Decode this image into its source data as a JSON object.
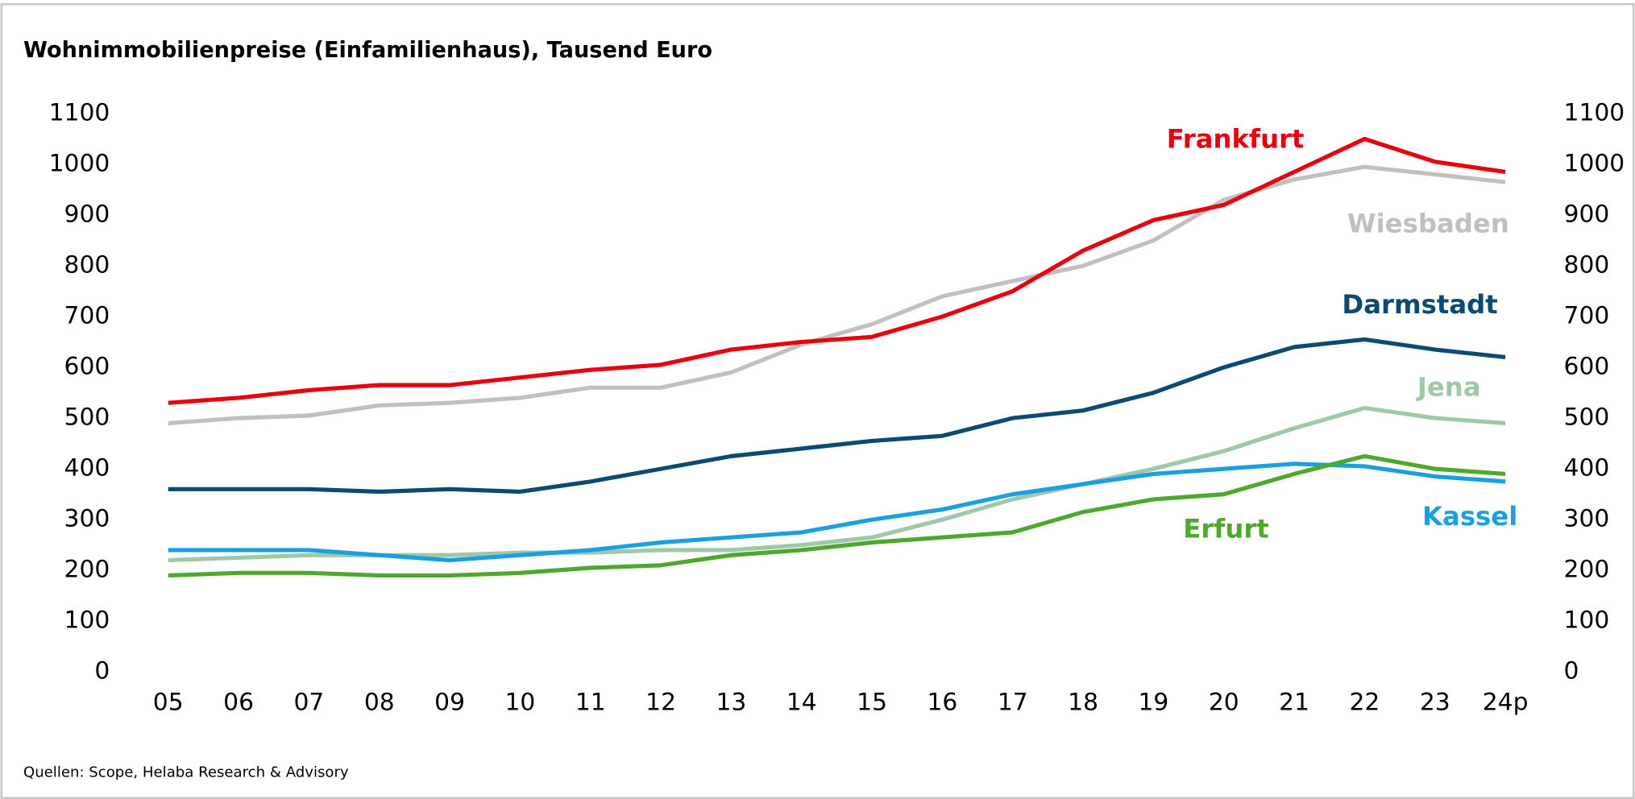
{
  "chart_data": {
    "type": "line",
    "title": "Wohnimmobilienpreise (Einfamilienhaus), Tausend Euro",
    "source": "Quellen: Scope, Helaba Research & Advisory",
    "categories": [
      "05",
      "06",
      "07",
      "08",
      "09",
      "10",
      "11",
      "12",
      "13",
      "14",
      "15",
      "16",
      "17",
      "18",
      "19",
      "20",
      "21",
      "22",
      "23",
      "24p"
    ],
    "ylim": [
      0,
      1100
    ],
    "yticks": [
      0,
      100,
      200,
      300,
      400,
      500,
      600,
      700,
      800,
      900,
      1000,
      1100
    ],
    "y2lim": [
      0,
      1100
    ],
    "y2ticks": [
      0,
      100,
      200,
      300,
      400,
      500,
      600,
      700,
      800,
      900,
      1000,
      1100
    ],
    "grid": false,
    "series": [
      {
        "name": "Wiesbaden",
        "color": "#c0c0c0",
        "values": [
          490,
          500,
          505,
          525,
          530,
          540,
          560,
          560,
          590,
          645,
          685,
          740,
          770,
          800,
          850,
          930,
          970,
          995,
          980,
          965
        ]
      },
      {
        "name": "Jena",
        "color": "#9ec8a8",
        "values": [
          220,
          225,
          230,
          230,
          230,
          235,
          235,
          240,
          240,
          250,
          265,
          300,
          340,
          370,
          400,
          435,
          480,
          520,
          500,
          490
        ]
      },
      {
        "name": "Kassel",
        "color": "#1a9fe0",
        "values": [
          240,
          240,
          240,
          230,
          220,
          230,
          240,
          255,
          265,
          275,
          300,
          320,
          350,
          370,
          390,
          400,
          410,
          405,
          385,
          375
        ]
      },
      {
        "name": "Erfurt",
        "color": "#4ea82e",
        "values": [
          190,
          195,
          195,
          190,
          190,
          195,
          205,
          210,
          230,
          240,
          255,
          265,
          275,
          315,
          340,
          350,
          390,
          425,
          400,
          390
        ]
      },
      {
        "name": "Darmstadt",
        "color": "#0b4a72",
        "values": [
          360,
          360,
          360,
          355,
          360,
          355,
          375,
          400,
          425,
          440,
          455,
          465,
          500,
          515,
          550,
          600,
          640,
          655,
          635,
          620
        ]
      },
      {
        "name": "Frankfurt",
        "color": "#e8000f",
        "values": [
          530,
          540,
          555,
          565,
          565,
          580,
          595,
          605,
          635,
          650,
          660,
          700,
          750,
          830,
          890,
          920,
          985,
          1050,
          1005,
          985
        ]
      }
    ]
  }
}
